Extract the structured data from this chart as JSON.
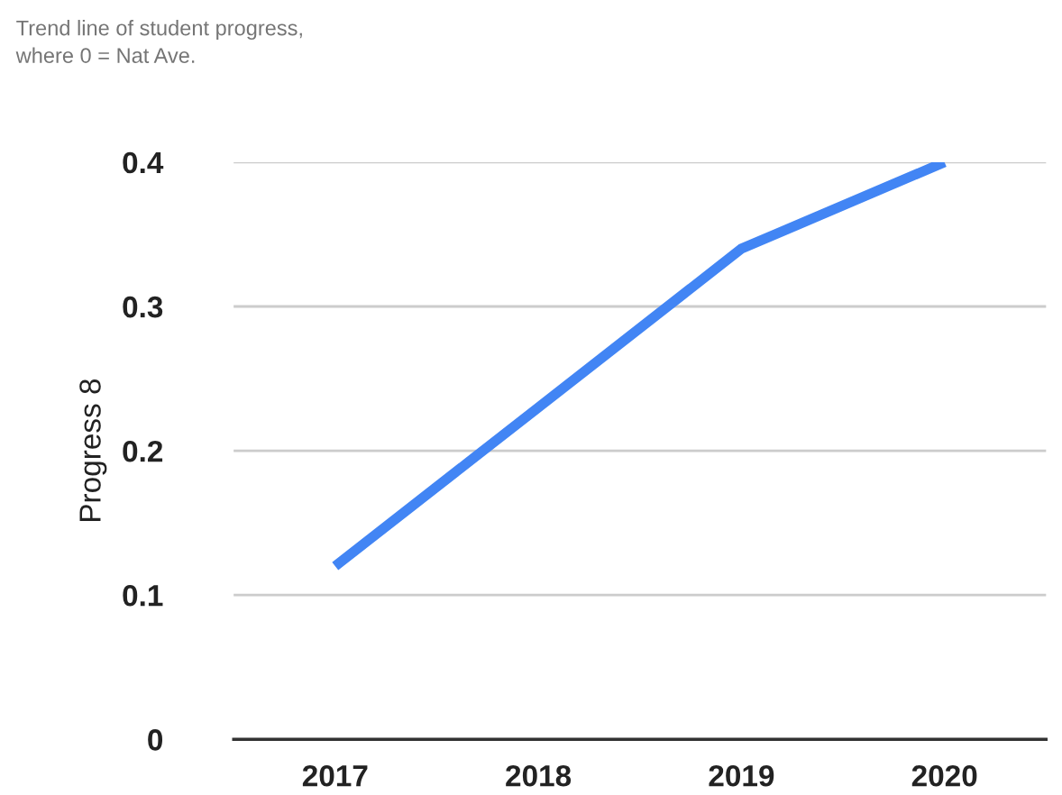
{
  "chart_data": {
    "type": "line",
    "title": "Trend line of student progress,\nwhere 0 = Nat Ave.",
    "ylabel": "Progress 8",
    "categories": [
      "2017",
      "2018",
      "2019",
      "2020"
    ],
    "series": [
      {
        "color": "#4285f4",
        "values": [
          0.12,
          0.23,
          0.34,
          0.4
        ]
      }
    ],
    "ylim": [
      0,
      0.4
    ],
    "yticks": [
      {
        "value": 0,
        "label": "0"
      },
      0.1,
      0.2,
      0.3,
      0.4
    ],
    "grid": "y",
    "marker": "none",
    "line_style": "solid"
  }
}
